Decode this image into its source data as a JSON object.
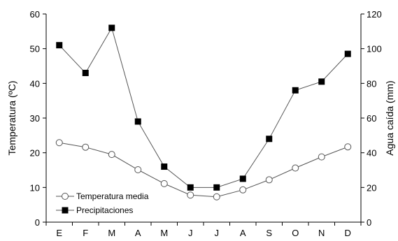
{
  "chart_data": {
    "type": "line",
    "title": "",
    "xlabel": "",
    "ylabel_left": "Temperatura (ºC)",
    "ylabel_right": "Agua caída (mm)",
    "categories": [
      "E",
      "F",
      "M",
      "A",
      "M",
      "J",
      "J",
      "A",
      "S",
      "O",
      "N",
      "D"
    ],
    "y_left_lim": [
      0,
      60
    ],
    "y_left_ticks": [
      0,
      10,
      20,
      30,
      40,
      50,
      60
    ],
    "y_right_lim": [
      0,
      120
    ],
    "y_right_ticks": [
      0,
      20,
      40,
      60,
      80,
      100,
      120
    ],
    "grid": false,
    "legend_position": "bottom-left",
    "series": [
      {
        "name": "Temperatura media",
        "axis": "left",
        "marker": "open-circle",
        "values": [
          22.9,
          21.6,
          19.5,
          15.1,
          11.1,
          7.8,
          7.3,
          9.3,
          12.2,
          15.6,
          18.8,
          21.7
        ]
      },
      {
        "name": "Precipitaciones",
        "axis": "right",
        "marker": "filled-square",
        "values": [
          102,
          86,
          112,
          58,
          32,
          20,
          20,
          25,
          48,
          76,
          81,
          97
        ]
      }
    ]
  }
}
